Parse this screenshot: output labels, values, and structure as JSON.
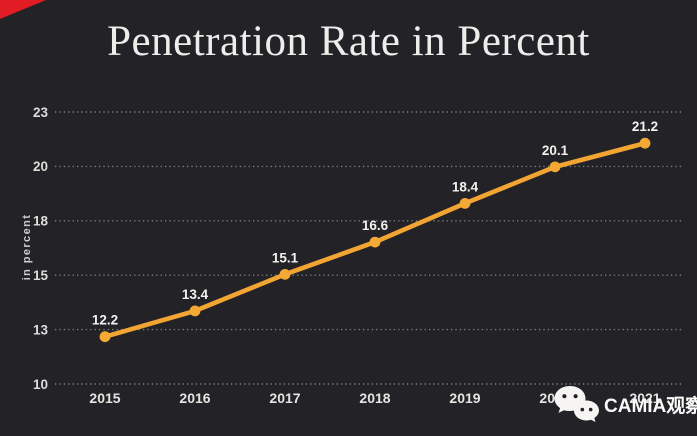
{
  "page": {
    "background_color": "#232227",
    "corner_flag_color": "#e11c24"
  },
  "title": "Penetration Rate in Percent",
  "watermark": {
    "icon": "wechat-icon",
    "label": "CAMIA观察"
  },
  "chart_data": {
    "type": "line",
    "title": "Penetration Rate in Percent",
    "xlabel": "",
    "ylabel": "in percent",
    "categories": [
      "2015",
      "2016",
      "2017",
      "2018",
      "2019",
      "2020",
      "2021"
    ],
    "values": [
      12.2,
      13.4,
      15.1,
      16.6,
      18.4,
      20.1,
      21.2
    ],
    "point_labels": [
      "12.2",
      "13.4",
      "15.1",
      "16.6",
      "18.4",
      "20.1",
      "21.2"
    ],
    "y_tick_labels": [
      "23",
      "20",
      "18",
      "15",
      "13",
      "10"
    ],
    "ylim": [
      10,
      23
    ],
    "grid": "horizontal-dotted",
    "legend": "none",
    "colors": {
      "line": "#f2a532",
      "marker": "#f4a935",
      "gridline": "rgba(255,255,255,0.42)",
      "tick_text": "#dedcd8",
      "point_label_text": "#f4f2ee"
    }
  }
}
